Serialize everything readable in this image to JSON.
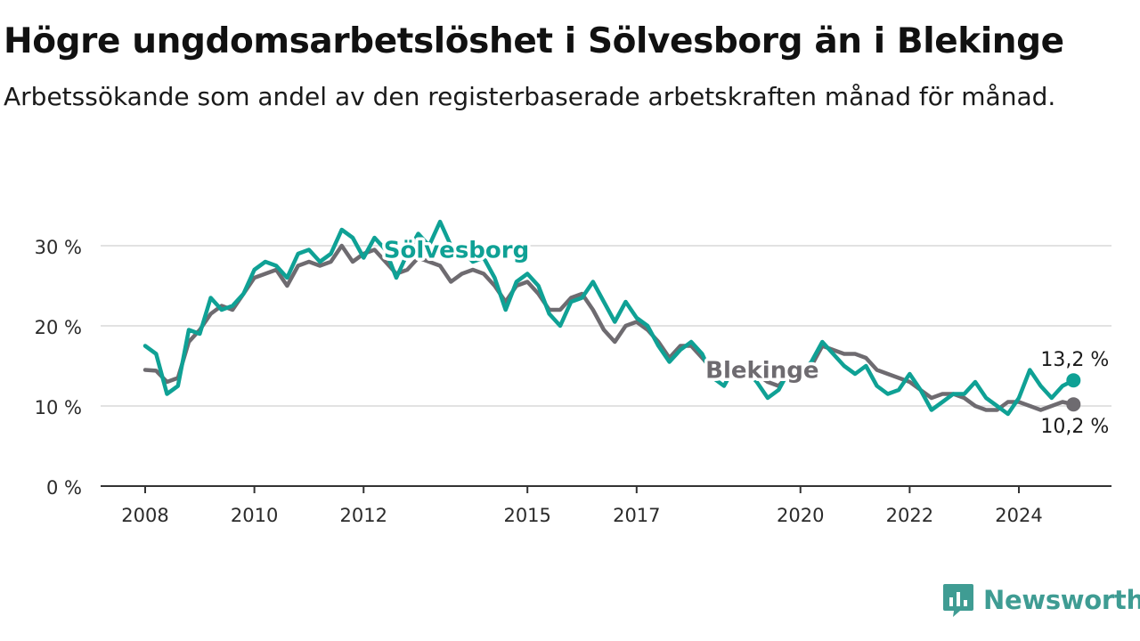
{
  "title": "Högre ungdomsarbetslöshet i Sölvesborg än i Blekinge",
  "subtitle": "Arbetssökande som andel av den registerbaserade arbetskraften månad för månad.",
  "brand": {
    "name": "Newsworthy",
    "icon": "newsworthy-logo-icon",
    "color": "#3f9c93"
  },
  "chart_data": {
    "type": "line",
    "title": "Högre ungdomsarbetslöshet i Sölvesborg än i Blekinge",
    "subtitle": "Arbetssökande som andel av den registerbaserade arbetskraften månad för månad.",
    "x_unit": "year",
    "xlim": [
      2007.8,
      2025.6
    ],
    "ylim": [
      0,
      33
    ],
    "yticks": [
      0,
      10,
      20,
      30
    ],
    "ytick_labels": [
      "0 %",
      "10 %",
      "20 %",
      "30 %"
    ],
    "xticks": [
      2008,
      2010,
      2012,
      2015,
      2017,
      2020,
      2022,
      2024
    ],
    "xtick_labels": [
      "2008",
      "2010",
      "2012",
      "2015",
      "2017",
      "2020",
      "2022",
      "2024"
    ],
    "grid": true,
    "legend": "inline labels",
    "series": [
      {
        "name": "Blekinge",
        "color": "#6e6b70",
        "label_x": 2019.3,
        "label_y": 13.5,
        "end_label": "10,2 %",
        "points": [
          [
            2008.0,
            14.5
          ],
          [
            2008.2,
            14.4
          ],
          [
            2008.4,
            13.0
          ],
          [
            2008.6,
            13.5
          ],
          [
            2008.8,
            18.0
          ],
          [
            2009.0,
            19.5
          ],
          [
            2009.2,
            21.5
          ],
          [
            2009.4,
            22.5
          ],
          [
            2009.6,
            22.0
          ],
          [
            2009.8,
            24.0
          ],
          [
            2010.0,
            26.0
          ],
          [
            2010.2,
            26.5
          ],
          [
            2010.4,
            27.0
          ],
          [
            2010.6,
            25.0
          ],
          [
            2010.8,
            27.5
          ],
          [
            2011.0,
            28.0
          ],
          [
            2011.2,
            27.5
          ],
          [
            2011.4,
            28.0
          ],
          [
            2011.6,
            30.0
          ],
          [
            2011.8,
            28.0
          ],
          [
            2012.0,
            29.0
          ],
          [
            2012.2,
            29.5
          ],
          [
            2012.4,
            28.0
          ],
          [
            2012.6,
            26.5
          ],
          [
            2012.8,
            27.0
          ],
          [
            2013.0,
            28.5
          ],
          [
            2013.2,
            28.0
          ],
          [
            2013.4,
            27.5
          ],
          [
            2013.6,
            25.5
          ],
          [
            2013.8,
            26.5
          ],
          [
            2014.0,
            27.0
          ],
          [
            2014.2,
            26.5
          ],
          [
            2014.4,
            25.0
          ],
          [
            2014.6,
            23.0
          ],
          [
            2014.8,
            25.0
          ],
          [
            2015.0,
            25.5
          ],
          [
            2015.2,
            24.0
          ],
          [
            2015.4,
            22.0
          ],
          [
            2015.6,
            22.0
          ],
          [
            2015.8,
            23.5
          ],
          [
            2016.0,
            24.0
          ],
          [
            2016.2,
            22.0
          ],
          [
            2016.4,
            19.5
          ],
          [
            2016.6,
            18.0
          ],
          [
            2016.8,
            20.0
          ],
          [
            2017.0,
            20.5
          ],
          [
            2017.2,
            19.5
          ],
          [
            2017.4,
            18.0
          ],
          [
            2017.6,
            16.0
          ],
          [
            2017.8,
            17.5
          ],
          [
            2018.0,
            17.5
          ],
          [
            2018.2,
            16.0
          ],
          [
            2018.4,
            14.5
          ],
          [
            2018.6,
            13.5
          ],
          [
            2018.8,
            14.5
          ],
          [
            2019.0,
            15.0
          ],
          [
            2019.2,
            14.0
          ],
          [
            2019.4,
            13.0
          ],
          [
            2019.6,
            12.5
          ],
          [
            2019.8,
            14.0
          ],
          [
            2020.0,
            14.5
          ],
          [
            2020.2,
            15.0
          ],
          [
            2020.4,
            17.5
          ],
          [
            2020.6,
            17.0
          ],
          [
            2020.8,
            16.5
          ],
          [
            2021.0,
            16.5
          ],
          [
            2021.2,
            16.0
          ],
          [
            2021.4,
            14.5
          ],
          [
            2021.6,
            14.0
          ],
          [
            2021.8,
            13.5
          ],
          [
            2022.0,
            13.0
          ],
          [
            2022.2,
            12.0
          ],
          [
            2022.4,
            11.0
          ],
          [
            2022.6,
            11.5
          ],
          [
            2022.8,
            11.5
          ],
          [
            2023.0,
            11.0
          ],
          [
            2023.2,
            10.0
          ],
          [
            2023.4,
            9.5
          ],
          [
            2023.6,
            9.5
          ],
          [
            2023.8,
            10.5
          ],
          [
            2024.0,
            10.5
          ],
          [
            2024.2,
            10.0
          ],
          [
            2024.4,
            9.5
          ],
          [
            2024.6,
            10.0
          ],
          [
            2024.8,
            10.5
          ],
          [
            2025.0,
            10.2
          ]
        ]
      },
      {
        "name": "Sölvesborg",
        "color": "#0fa195",
        "label_x": 2013.7,
        "label_y": 28.5,
        "end_label": "13,2 %",
        "points": [
          [
            2008.0,
            17.5
          ],
          [
            2008.2,
            16.5
          ],
          [
            2008.4,
            11.5
          ],
          [
            2008.6,
            12.5
          ],
          [
            2008.8,
            19.5
          ],
          [
            2009.0,
            19.0
          ],
          [
            2009.2,
            23.5
          ],
          [
            2009.4,
            22.0
          ],
          [
            2009.6,
            22.5
          ],
          [
            2009.8,
            24.0
          ],
          [
            2010.0,
            27.0
          ],
          [
            2010.2,
            28.0
          ],
          [
            2010.4,
            27.5
          ],
          [
            2010.6,
            26.0
          ],
          [
            2010.8,
            29.0
          ],
          [
            2011.0,
            29.5
          ],
          [
            2011.2,
            28.0
          ],
          [
            2011.4,
            29.0
          ],
          [
            2011.6,
            32.0
          ],
          [
            2011.8,
            31.0
          ],
          [
            2012.0,
            28.5
          ],
          [
            2012.2,
            31.0
          ],
          [
            2012.4,
            29.5
          ],
          [
            2012.6,
            26.0
          ],
          [
            2012.8,
            29.0
          ],
          [
            2013.0,
            31.5
          ],
          [
            2013.2,
            30.0
          ],
          [
            2013.4,
            33.0
          ],
          [
            2013.6,
            30.0
          ],
          [
            2013.8,
            29.5
          ],
          [
            2014.0,
            28.0
          ],
          [
            2014.2,
            28.5
          ],
          [
            2014.4,
            26.0
          ],
          [
            2014.6,
            22.0
          ],
          [
            2014.8,
            25.5
          ],
          [
            2015.0,
            26.5
          ],
          [
            2015.2,
            25.0
          ],
          [
            2015.4,
            21.5
          ],
          [
            2015.6,
            20.0
          ],
          [
            2015.8,
            23.0
          ],
          [
            2016.0,
            23.5
          ],
          [
            2016.2,
            25.5
          ],
          [
            2016.4,
            23.0
          ],
          [
            2016.6,
            20.5
          ],
          [
            2016.8,
            23.0
          ],
          [
            2017.0,
            21.0
          ],
          [
            2017.2,
            20.0
          ],
          [
            2017.4,
            17.5
          ],
          [
            2017.6,
            15.5
          ],
          [
            2017.8,
            17.0
          ],
          [
            2018.0,
            18.0
          ],
          [
            2018.2,
            16.5
          ],
          [
            2018.4,
            13.5
          ],
          [
            2018.6,
            12.5
          ],
          [
            2018.8,
            15.0
          ],
          [
            2019.0,
            14.5
          ],
          [
            2019.2,
            13.0
          ],
          [
            2019.4,
            11.0
          ],
          [
            2019.6,
            12.0
          ],
          [
            2019.8,
            14.5
          ],
          [
            2020.0,
            14.0
          ],
          [
            2020.2,
            15.5
          ],
          [
            2020.4,
            18.0
          ],
          [
            2020.6,
            16.5
          ],
          [
            2020.8,
            15.0
          ],
          [
            2021.0,
            14.0
          ],
          [
            2021.2,
            15.0
          ],
          [
            2021.4,
            12.5
          ],
          [
            2021.6,
            11.5
          ],
          [
            2021.8,
            12.0
          ],
          [
            2022.0,
            14.0
          ],
          [
            2022.2,
            12.0
          ],
          [
            2022.4,
            9.5
          ],
          [
            2022.6,
            10.5
          ],
          [
            2022.8,
            11.5
          ],
          [
            2023.0,
            11.5
          ],
          [
            2023.2,
            13.0
          ],
          [
            2023.4,
            11.0
          ],
          [
            2023.6,
            10.0
          ],
          [
            2023.8,
            9.0
          ],
          [
            2024.0,
            11.0
          ],
          [
            2024.2,
            14.5
          ],
          [
            2024.4,
            12.5
          ],
          [
            2024.6,
            11.0
          ],
          [
            2024.8,
            12.5
          ],
          [
            2025.0,
            13.2
          ]
        ]
      }
    ]
  }
}
